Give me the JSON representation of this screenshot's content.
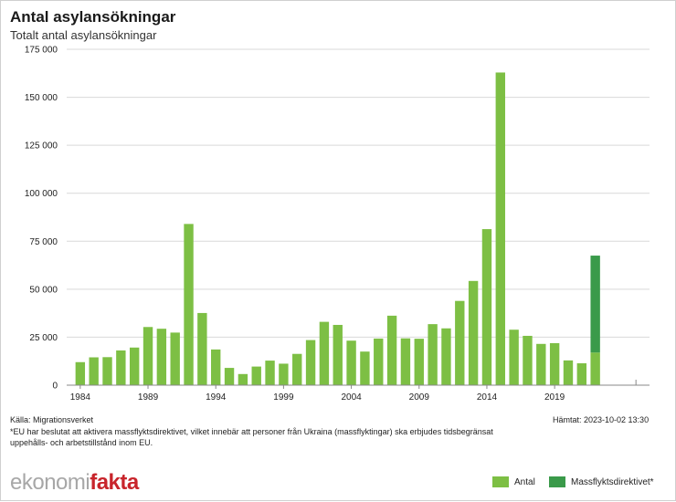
{
  "header": {
    "title": "Antal asylansökningar",
    "subtitle": "Totalt antal asylansökningar"
  },
  "footer": {
    "source": "Källa: Migrationsverket",
    "fetched": "Hämtat: 2023-10-02 13:30",
    "note": "*EU har beslutat att aktivera massflyktsdirektivet, vilket innebär att personer från Ukraina (massflyktingar) ska erbjudes tidsbegränsat uppehålls- och arbetstillstånd inom EU."
  },
  "logo": {
    "part1": "ekonomi",
    "part2": "fakta"
  },
  "colors": {
    "antal": "#7dbf44",
    "massflykt": "#3a9a4a",
    "grid": "#d9d9d9",
    "axis": "#888888"
  },
  "legend": {
    "antal": "Antal",
    "massflykt": "Massflyktsdirektivet*"
  },
  "chart_data": {
    "type": "bar",
    "stacked": true,
    "title": "Antal asylansökningar",
    "subtitle": "Totalt antal asylansökningar",
    "xlabel": "",
    "ylabel": "",
    "ylim": [
      0,
      175000
    ],
    "yticks": [
      0,
      25000,
      50000,
      75000,
      100000,
      125000,
      150000,
      175000
    ],
    "ytick_labels": [
      "0",
      "25 000",
      "50 000",
      "75 000",
      "100 000",
      "125 000",
      "150 000",
      "175 000"
    ],
    "xlim": [
      1983,
      2026
    ],
    "x_tick_labels": [
      "1984",
      "1989",
      "1994",
      "1999",
      "2004",
      "2009",
      "2014",
      "2019"
    ],
    "grid": true,
    "legend_position": "bottom-right",
    "categories": [
      1984,
      1985,
      1986,
      1987,
      1988,
      1989,
      1990,
      1991,
      1992,
      1993,
      1994,
      1995,
      1996,
      1997,
      1998,
      1999,
      2000,
      2001,
      2002,
      2003,
      2004,
      2005,
      2006,
      2007,
      2008,
      2009,
      2010,
      2011,
      2012,
      2013,
      2014,
      2015,
      2016,
      2017,
      2018,
      2019,
      2020,
      2021,
      2022
    ],
    "series": [
      {
        "name": "Antal",
        "values": [
          12000,
          14500,
          14600,
          18100,
          19600,
          30300,
          29400,
          27400,
          84000,
          37600,
          18600,
          9000,
          5800,
          9700,
          12800,
          11200,
          16300,
          23500,
          33000,
          31400,
          23200,
          17500,
          24300,
          36200,
          24400,
          24200,
          31800,
          29600,
          43900,
          54300,
          81300,
          162900,
          28900,
          25700,
          21500,
          21900,
          12900,
          11400,
          17000
        ]
      },
      {
        "name": "Massflyktsdirektivet*",
        "values": [
          0,
          0,
          0,
          0,
          0,
          0,
          0,
          0,
          0,
          0,
          0,
          0,
          0,
          0,
          0,
          0,
          0,
          0,
          0,
          0,
          0,
          0,
          0,
          0,
          0,
          0,
          0,
          0,
          0,
          0,
          0,
          0,
          0,
          0,
          0,
          0,
          0,
          0,
          50500
        ]
      }
    ]
  }
}
